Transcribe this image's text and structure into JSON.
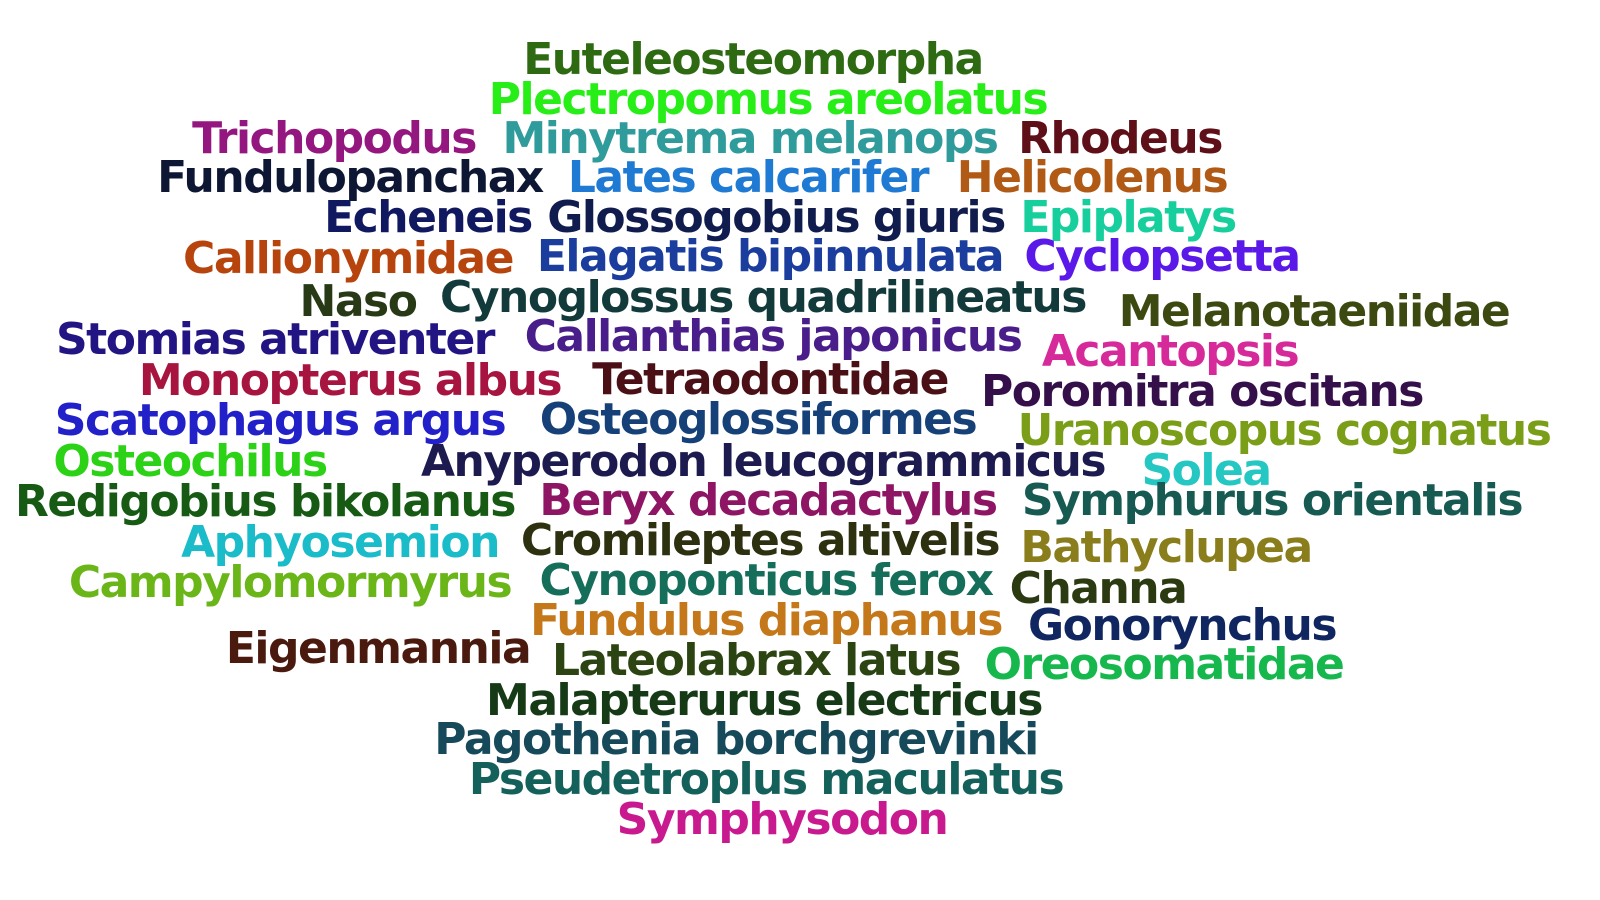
{
  "words": [
    {
      "text": "Euteleosteomorpha",
      "color": "#2d6a12"
    },
    {
      "text": "Plectropomus areolatus",
      "color": "#27ee17"
    },
    {
      "text": "Trichopodus",
      "color": "#94167f"
    },
    {
      "text": "Minytrema melanops",
      "color": "#2f9b9b"
    },
    {
      "text": "Rhodeus",
      "color": "#5e0f17"
    },
    {
      "text": "Fundulopanchax",
      "color": "#0d1633"
    },
    {
      "text": "Lates calcarifer",
      "color": "#1e7ad3"
    },
    {
      "text": "Helicolenus",
      "color": "#b05a16"
    },
    {
      "text": "Echeneis",
      "color": "#101860"
    },
    {
      "text": "Glossogobius giuris",
      "color": "#101b4e"
    },
    {
      "text": "Epiplatys",
      "color": "#16cf9c"
    },
    {
      "text": "Callionymidae",
      "color": "#b8440d"
    },
    {
      "text": "Elagatis bipinnulata",
      "color": "#1a3d9e"
    },
    {
      "text": "Cyclopsetta",
      "color": "#5a19e8"
    },
    {
      "text": "Naso",
      "color": "#273a15"
    },
    {
      "text": "Cynoglossus quadrilineatus",
      "color": "#123a3a"
    },
    {
      "text": "Melanotaeniidae",
      "color": "#3c4a12"
    },
    {
      "text": "Stomias atriventer",
      "color": "#221482"
    },
    {
      "text": "Callanthias japonicus",
      "color": "#4a1e8a"
    },
    {
      "text": "Acantopsis",
      "color": "#d62a9a"
    },
    {
      "text": "Monopterus albus",
      "color": "#a7143f"
    },
    {
      "text": "Tetraodontidae",
      "color": "#4a1016"
    },
    {
      "text": "Poromitra oscitans",
      "color": "#350f4a"
    },
    {
      "text": "Scatophagus argus",
      "color": "#2120c9"
    },
    {
      "text": "Osteoglossiformes",
      "color": "#164078"
    },
    {
      "text": "Uranoscopus cognatus",
      "color": "#7a9e17"
    },
    {
      "text": "Osteochilus",
      "color": "#2cd216"
    },
    {
      "text": "Anyperodon leucogrammicus",
      "color": "#1c1a4e"
    },
    {
      "text": "Solea",
      "color": "#24c7c2"
    },
    {
      "text": "Redigobius bikolanus",
      "color": "#165a14"
    },
    {
      "text": "Beryx decadactylus",
      "color": "#8e1464"
    },
    {
      "text": "Symphurus orientalis",
      "color": "#165a52"
    },
    {
      "text": "Aphyosemion",
      "color": "#19bcc8"
    },
    {
      "text": "Cromileptes altivelis",
      "color": "#2e3110"
    },
    {
      "text": "Bathyclupea",
      "color": "#8a7e1c"
    },
    {
      "text": "Campylomormyrus",
      "color": "#6ab619"
    },
    {
      "text": "Cynoponticus ferox",
      "color": "#146e5a"
    },
    {
      "text": "Channa",
      "color": "#2c3a12"
    },
    {
      "text": "Fundulus diaphanus",
      "color": "#c4781a"
    },
    {
      "text": "Gonorynchus",
      "color": "#102660"
    },
    {
      "text": "Eigenmannia",
      "color": "#4a1a0e"
    },
    {
      "text": "Lateolabrax latus",
      "color": "#2c4412"
    },
    {
      "text": "Oreosomatidae",
      "color": "#16b84e"
    },
    {
      "text": "Malapterurus electricus",
      "color": "#163a16"
    },
    {
      "text": "Pagothenia borchgrevinki",
      "color": "#164a5a"
    },
    {
      "text": "Pseudetroplus maculatus",
      "color": "#14605a"
    },
    {
      "text": "Symphysodon",
      "color": "#c81a8e"
    }
  ]
}
